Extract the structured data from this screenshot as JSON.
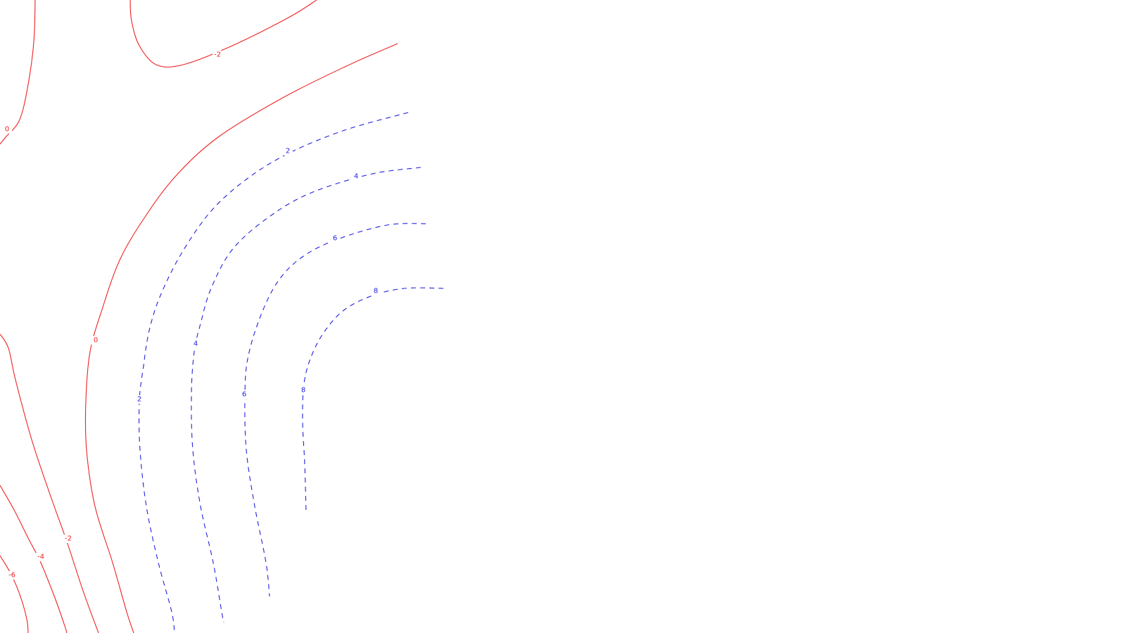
{
  "chart_data": {
    "type": "contour",
    "title": "",
    "xlabel": "",
    "ylabel": "",
    "grid": false,
    "legend": "none",
    "colors": {
      "negative_and_zero": "#ee2222",
      "positive": "#2222dd"
    },
    "line_styles": {
      "negative_and_zero": "solid",
      "positive": "dashed"
    },
    "levels": [
      -6,
      -4,
      -2,
      0,
      2,
      4,
      6,
      8
    ],
    "contour_labels": [
      "-2",
      "0",
      "0",
      "-2",
      "-4",
      "-6",
      "2",
      "2",
      "4",
      "4",
      "6",
      "6",
      "8",
      "8"
    ]
  }
}
